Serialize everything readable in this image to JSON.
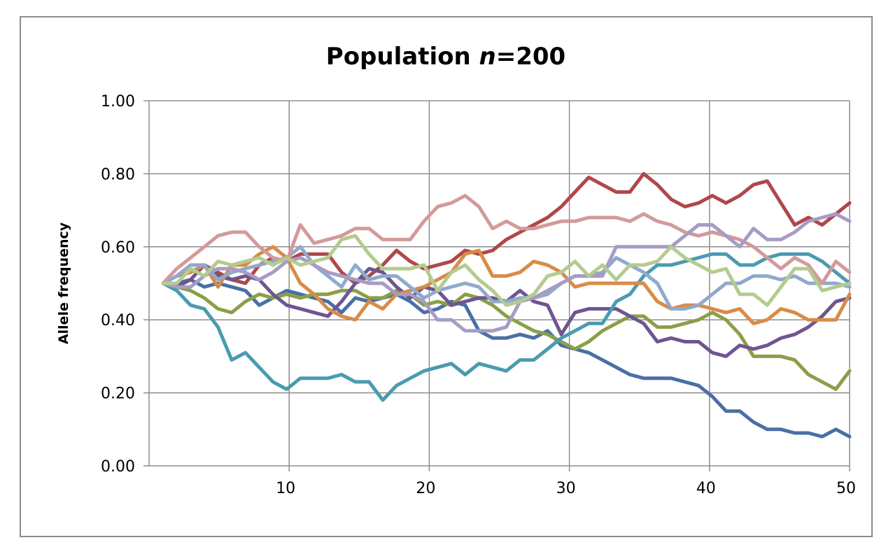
{
  "chart_data": {
    "type": "line",
    "title": "Population ",
    "title_italic": "n",
    "title_suffix": "=200",
    "xlabel": "",
    "ylabel": "Allele frequency",
    "xlim": [
      0,
      50
    ],
    "ylim": [
      0,
      1
    ],
    "x_ticks": [
      "10",
      "20",
      "30",
      "40",
      "50"
    ],
    "y_ticks": [
      "0.00",
      "0.20",
      "0.40",
      "0.60",
      "0.80",
      "1.00"
    ],
    "grid": true,
    "legend": "none",
    "series": [
      {
        "color": "#4a6fa5",
        "values": [
          0.5,
          0.5,
          0.51,
          0.49,
          0.5,
          0.49,
          0.48,
          0.44,
          0.46,
          0.48,
          0.47,
          0.46,
          0.45,
          0.42,
          0.46,
          0.45,
          0.46,
          0.47,
          0.45,
          0.42,
          0.43,
          0.45,
          0.44,
          0.37,
          0.35,
          0.35,
          0.36,
          0.35,
          0.37,
          0.33,
          0.32,
          0.31,
          0.29,
          0.27,
          0.25,
          0.24,
          0.24,
          0.24,
          0.23,
          0.22,
          0.19,
          0.15,
          0.15,
          0.12,
          0.1,
          0.1,
          0.09,
          0.09,
          0.08,
          0.1,
          0.08
        ]
      },
      {
        "color": "#b0474a",
        "values": [
          0.5,
          0.52,
          0.53,
          0.55,
          0.53,
          0.51,
          0.5,
          0.55,
          0.57,
          0.56,
          0.58,
          0.58,
          0.58,
          0.53,
          0.5,
          0.52,
          0.55,
          0.59,
          0.56,
          0.54,
          0.55,
          0.56,
          0.59,
          0.58,
          0.59,
          0.62,
          0.64,
          0.66,
          0.68,
          0.71,
          0.75,
          0.79,
          0.77,
          0.75,
          0.75,
          0.8,
          0.77,
          0.73,
          0.71,
          0.72,
          0.74,
          0.72,
          0.74,
          0.77,
          0.78,
          0.72,
          0.66,
          0.68,
          0.66,
          0.69,
          0.72
        ]
      },
      {
        "color": "#8a9f49",
        "values": [
          0.5,
          0.49,
          0.48,
          0.46,
          0.43,
          0.42,
          0.45,
          0.47,
          0.46,
          0.47,
          0.46,
          0.47,
          0.47,
          0.48,
          0.48,
          0.46,
          0.46,
          0.48,
          0.47,
          0.44,
          0.45,
          0.44,
          0.47,
          0.46,
          0.44,
          0.41,
          0.39,
          0.37,
          0.36,
          0.34,
          0.32,
          0.34,
          0.37,
          0.39,
          0.41,
          0.41,
          0.38,
          0.38,
          0.39,
          0.4,
          0.42,
          0.4,
          0.36,
          0.3,
          0.3,
          0.3,
          0.29,
          0.25,
          0.23,
          0.21,
          0.26
        ]
      },
      {
        "color": "#6e5591",
        "values": [
          0.5,
          0.49,
          0.51,
          0.55,
          0.52,
          0.51,
          0.52,
          0.51,
          0.47,
          0.44,
          0.43,
          0.42,
          0.41,
          0.45,
          0.5,
          0.54,
          0.53,
          0.49,
          0.46,
          0.49,
          0.48,
          0.44,
          0.45,
          0.46,
          0.46,
          0.45,
          0.48,
          0.45,
          0.44,
          0.36,
          0.42,
          0.43,
          0.43,
          0.43,
          0.41,
          0.39,
          0.34,
          0.35,
          0.34,
          0.34,
          0.31,
          0.3,
          0.33,
          0.32,
          0.33,
          0.35,
          0.36,
          0.38,
          0.41,
          0.45,
          0.46
        ]
      },
      {
        "color": "#4a9bb0",
        "values": [
          0.5,
          0.48,
          0.44,
          0.43,
          0.38,
          0.29,
          0.31,
          0.27,
          0.23,
          0.21,
          0.24,
          0.24,
          0.24,
          0.25,
          0.23,
          0.23,
          0.18,
          0.22,
          0.24,
          0.26,
          0.27,
          0.28,
          0.25,
          0.28,
          0.27,
          0.26,
          0.29,
          0.29,
          0.32,
          0.35,
          0.37,
          0.39,
          0.39,
          0.45,
          0.47,
          0.52,
          0.55,
          0.55,
          0.56,
          0.57,
          0.58,
          0.58,
          0.55,
          0.55,
          0.57,
          0.58,
          0.58,
          0.58,
          0.56,
          0.53,
          0.5
        ]
      },
      {
        "color": "#d98b47",
        "values": [
          0.5,
          0.52,
          0.53,
          0.55,
          0.49,
          0.55,
          0.55,
          0.58,
          0.6,
          0.57,
          0.5,
          0.47,
          0.43,
          0.41,
          0.4,
          0.45,
          0.43,
          0.47,
          0.48,
          0.49,
          0.51,
          0.53,
          0.58,
          0.59,
          0.52,
          0.52,
          0.53,
          0.56,
          0.55,
          0.53,
          0.49,
          0.5,
          0.5,
          0.5,
          0.5,
          0.5,
          0.45,
          0.43,
          0.44,
          0.44,
          0.43,
          0.42,
          0.43,
          0.39,
          0.4,
          0.43,
          0.42,
          0.4,
          0.4,
          0.4,
          0.47
        ]
      },
      {
        "color": "#8faacd",
        "values": [
          0.5,
          0.52,
          0.55,
          0.55,
          0.51,
          0.53,
          0.54,
          0.55,
          0.56,
          0.57,
          0.6,
          0.55,
          0.52,
          0.49,
          0.55,
          0.51,
          0.52,
          0.52,
          0.49,
          0.46,
          0.48,
          0.49,
          0.5,
          0.49,
          0.45,
          0.45,
          0.46,
          0.46,
          0.47,
          0.5,
          0.52,
          0.52,
          0.53,
          0.57,
          0.55,
          0.53,
          0.5,
          0.43,
          0.43,
          0.44,
          0.47,
          0.5,
          0.5,
          0.52,
          0.52,
          0.51,
          0.52,
          0.5,
          0.5,
          0.5,
          0.49
        ]
      },
      {
        "color": "#d39a9b",
        "values": [
          0.5,
          0.54,
          0.57,
          0.6,
          0.63,
          0.64,
          0.64,
          0.6,
          0.57,
          0.56,
          0.66,
          0.61,
          0.62,
          0.63,
          0.65,
          0.65,
          0.62,
          0.62,
          0.62,
          0.67,
          0.71,
          0.72,
          0.74,
          0.71,
          0.65,
          0.67,
          0.65,
          0.65,
          0.66,
          0.67,
          0.67,
          0.68,
          0.68,
          0.68,
          0.67,
          0.69,
          0.67,
          0.66,
          0.64,
          0.63,
          0.64,
          0.63,
          0.62,
          0.6,
          0.57,
          0.54,
          0.57,
          0.55,
          0.5,
          0.56,
          0.53
        ]
      },
      {
        "color": "#a79cc5",
        "values": [
          0.5,
          0.49,
          0.49,
          0.52,
          0.54,
          0.54,
          0.53,
          0.51,
          0.53,
          0.56,
          0.57,
          0.55,
          0.53,
          0.52,
          0.51,
          0.5,
          0.5,
          0.47,
          0.47,
          0.45,
          0.4,
          0.4,
          0.37,
          0.37,
          0.37,
          0.38,
          0.45,
          0.46,
          0.48,
          0.5,
          0.52,
          0.52,
          0.52,
          0.6,
          0.6,
          0.6,
          0.6,
          0.6,
          0.63,
          0.66,
          0.66,
          0.63,
          0.6,
          0.65,
          0.62,
          0.62,
          0.64,
          0.67,
          0.68,
          0.69,
          0.67
        ]
      },
      {
        "color": "#b3cc8e",
        "values": [
          0.5,
          0.5,
          0.54,
          0.52,
          0.56,
          0.55,
          0.56,
          0.57,
          0.55,
          0.57,
          0.55,
          0.56,
          0.57,
          0.62,
          0.63,
          0.58,
          0.54,
          0.54,
          0.54,
          0.55,
          0.48,
          0.53,
          0.55,
          0.51,
          0.48,
          0.44,
          0.45,
          0.47,
          0.52,
          0.53,
          0.56,
          0.52,
          0.55,
          0.51,
          0.55,
          0.55,
          0.56,
          0.6,
          0.57,
          0.55,
          0.53,
          0.54,
          0.47,
          0.47,
          0.44,
          0.49,
          0.54,
          0.54,
          0.48,
          0.49,
          0.5
        ]
      }
    ]
  }
}
